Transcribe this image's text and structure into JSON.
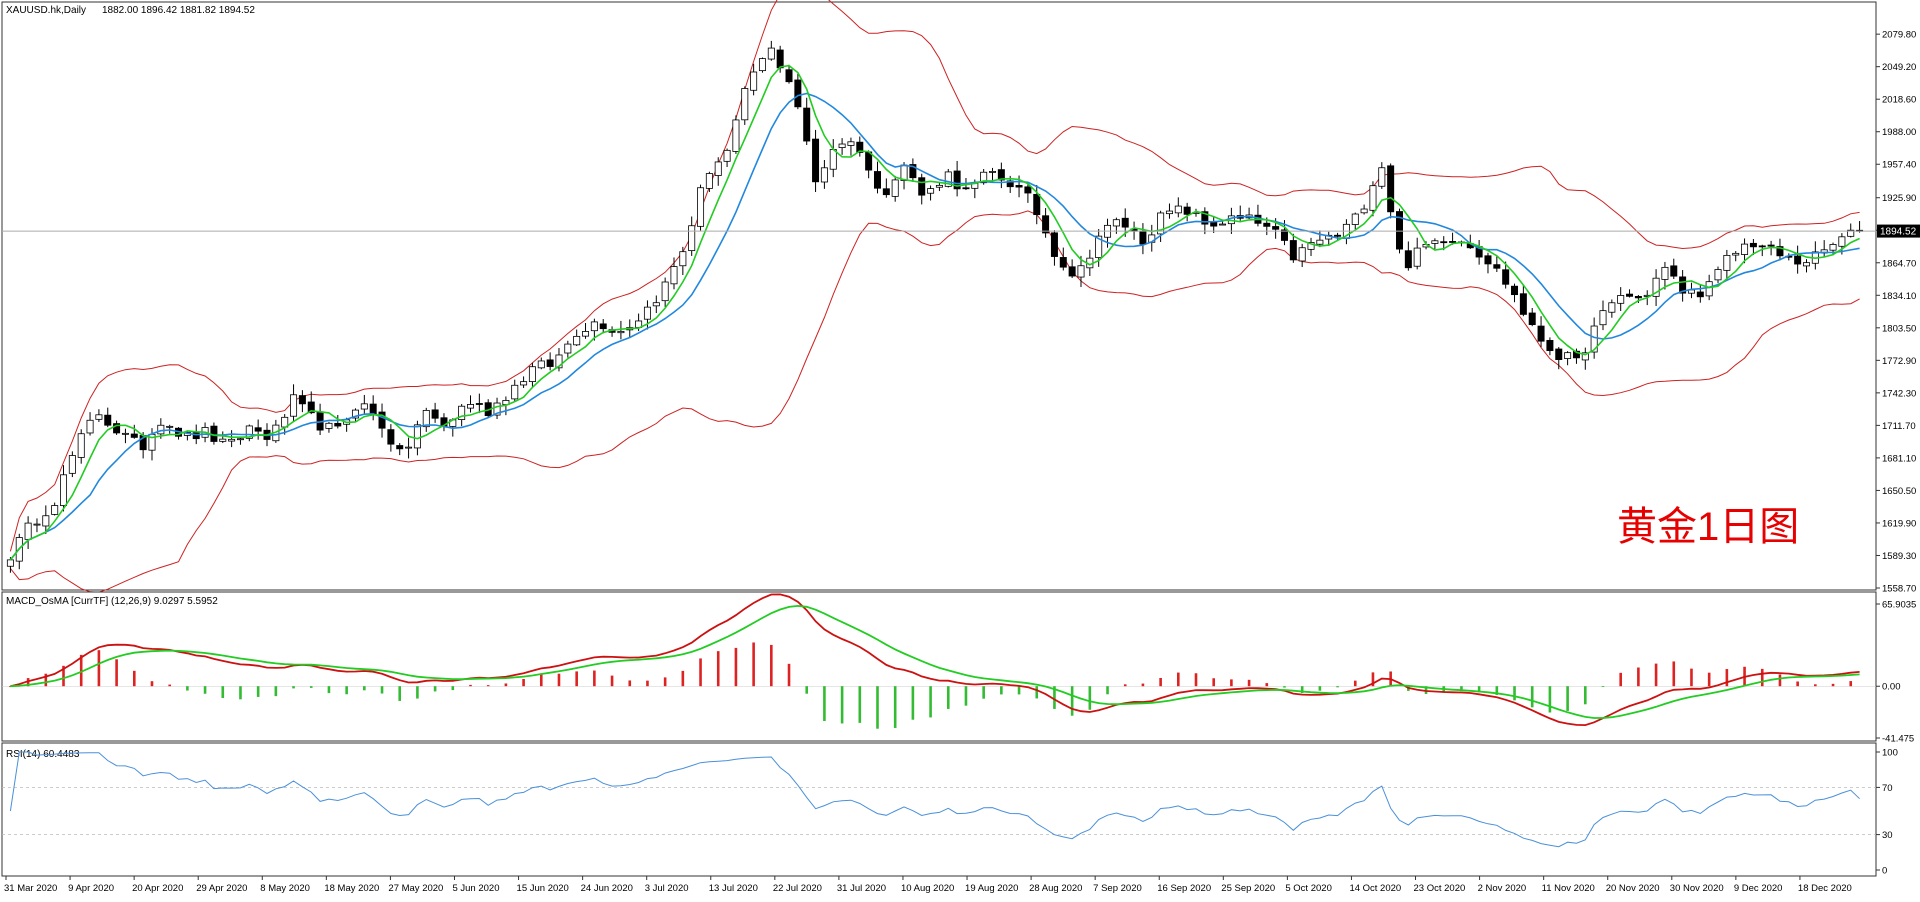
{
  "header": {
    "symbol": "XAUUSD.hk,Daily",
    "ohlc": "1882.00 1896.42 1881.82 1894.52",
    "current_price_label": "1894.52",
    "annotation": "黄金1日图"
  },
  "colors": {
    "background": "#ffffff",
    "border": "#333333",
    "candle": "#000000",
    "bollinger": "#cc2222",
    "ma_fast": "#22cc22",
    "ma_slow": "#2288dd",
    "macd_line": "#cc1111",
    "signal_line": "#22cc22",
    "hist_pos": "#dd2222",
    "hist_neg": "#33bb33",
    "rsi_line": "#4a90d9",
    "annotation": "#e60000",
    "current_price_bg": "#000000"
  },
  "chart_data": [
    {
      "type": "candlestick",
      "title": "XAUUSD.hk,Daily",
      "dates": [
        "31 Mar 2020",
        "9 Apr 2020",
        "20 Apr 2020",
        "29 Apr 2020",
        "8 May 2020",
        "18 May 2020",
        "27 May 2020",
        "5 Jun 2020",
        "15 Jun 2020",
        "24 Jun 2020",
        "3 Jul 2020",
        "13 Jul 2020",
        "22 Jul 2020",
        "31 Jul 2020",
        "10 Aug 2020",
        "19 Aug 2020",
        "28 Aug 2020",
        "7 Sep 2020",
        "16 Sep 2020",
        "25 Sep 2020",
        "5 Oct 2020",
        "14 Oct 2020",
        "23 Oct 2020",
        "2 Nov 2020",
        "11 Nov 2020",
        "20 Nov 2020",
        "30 Nov 2020",
        "9 Dec 2020",
        "18 Dec 2020"
      ],
      "y_ticks": [
        2079.8,
        2049.2,
        2018.6,
        1988.0,
        1957.4,
        1925.9,
        1895.3,
        1864.7,
        1834.1,
        1803.5,
        1772.9,
        1742.3,
        1711.7,
        1681.1,
        1650.5,
        1619.9,
        1589.3,
        1558.7
      ],
      "y_tick_labels": [
        "2079.80",
        "2049.20",
        "2018.60",
        "1988.00",
        "1957.40",
        "1925.90",
        "1895.30",
        "1864.70",
        "1834.10",
        "1803.50",
        "1772.90",
        "1742.30",
        "1711.70",
        "1681.10",
        "1650.50",
        "1619.90",
        "1589.30",
        "1558.70"
      ],
      "ylim": [
        1558.7,
        2095
      ],
      "close_anchors": [
        1590,
        1620,
        1640,
        1690,
        1725,
        1705,
        1690,
        1720,
        1700,
        1705,
        1690,
        1710,
        1700,
        1735,
        1715,
        1705,
        1735,
        1715,
        1680,
        1725,
        1710,
        1735,
        1725,
        1745,
        1765,
        1770,
        1800,
        1810,
        1800,
        1815,
        1840,
        1880,
        1950,
        1970,
        2040,
        2065,
        2030,
        1940,
        1980,
        1975,
        1925,
        1960,
        1925,
        1950,
        1930,
        1950,
        1940,
        1920,
        1875,
        1850,
        1890,
        1905,
        1885,
        1910,
        1915,
        1900,
        1905,
        1905,
        1895,
        1870,
        1885,
        1890,
        1910,
        1960,
        1860,
        1880,
        1890,
        1885,
        1865,
        1840,
        1800,
        1780,
        1770,
        1810,
        1835,
        1830,
        1860,
        1835,
        1840,
        1870,
        1885,
        1875,
        1865,
        1870,
        1885,
        1894.52
      ]
    },
    {
      "type": "line",
      "title": "MACD_OsMA [CurrTF] (12,26,9) 9.0297 5.5952",
      "y_tick_labels": [
        "65.9035",
        "0.00",
        "-41.475"
      ],
      "ylim": [
        -41.475,
        65.9035
      ],
      "series": [
        {
          "name": "MACD"
        },
        {
          "name": "Signal"
        },
        {
          "name": "OsMA"
        }
      ]
    },
    {
      "type": "line",
      "title": "RSI(14) 60.4483",
      "y_tick_labels": [
        "100",
        "70",
        "30",
        "0"
      ],
      "ylim": [
        0,
        100
      ],
      "levels": [
        70,
        30
      ],
      "last_value": 60.4483
    }
  ]
}
